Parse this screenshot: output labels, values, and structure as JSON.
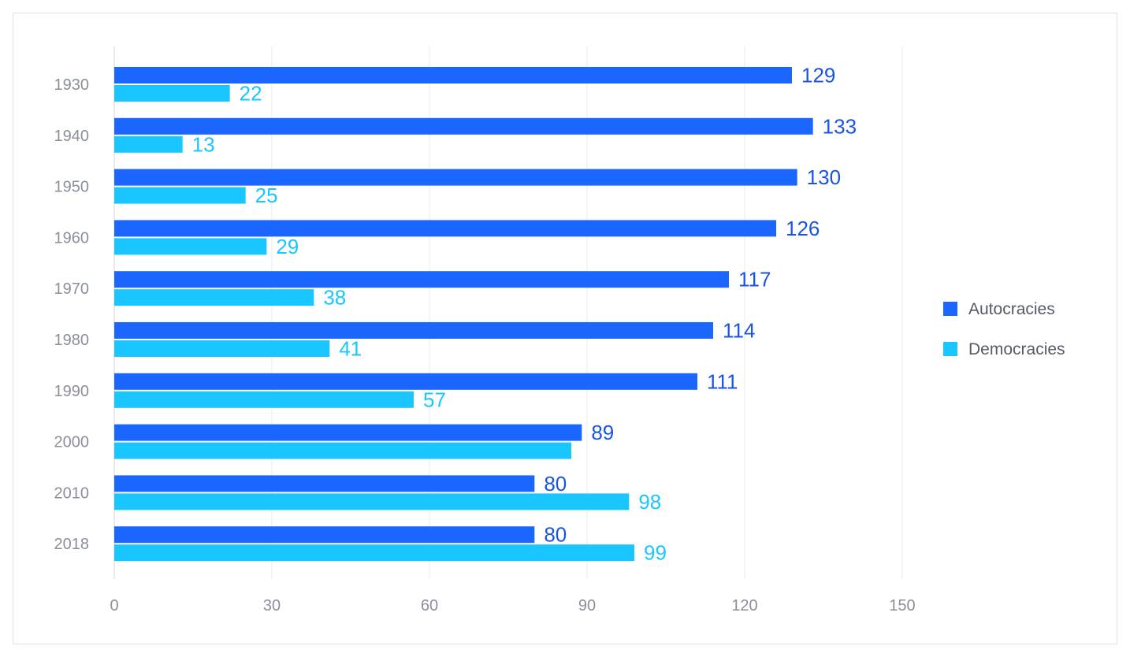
{
  "chart_data": {
    "type": "bar",
    "orientation": "horizontal",
    "categories": [
      "1930",
      "1940",
      "1950",
      "1960",
      "1970",
      "1980",
      "1990",
      "2000",
      "2010",
      "2018"
    ],
    "series": [
      {
        "name": "Autocracies",
        "color": "#1a66ff",
        "values": [
          129,
          133,
          130,
          126,
          117,
          114,
          111,
          89,
          80,
          80
        ],
        "labels": [
          "129",
          "133",
          "130",
          "126",
          "117",
          "114",
          "111",
          "89",
          "80",
          "80"
        ]
      },
      {
        "name": "Democracies",
        "color": "#1ac6ff",
        "values": [
          22,
          13,
          25,
          29,
          38,
          41,
          57,
          87,
          98,
          99
        ],
        "labels": [
          "22",
          "13",
          "25",
          "29",
          "38",
          "41",
          "57",
          "",
          "98",
          "99"
        ]
      }
    ],
    "xlim": [
      0,
      150
    ],
    "xticks": [
      "0",
      "30",
      "60",
      "90",
      "120",
      "150"
    ],
    "grid": true,
    "legend_position": "right"
  }
}
